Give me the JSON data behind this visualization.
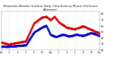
{
  "title": "Milwaukee Weather Outdoor Temp / Dew Point by Minute (24 Hours) (Alternate)",
  "title_fontsize": 2.8,
  "background_color": "#ffffff",
  "plot_bg_color": "#ffffff",
  "grid_color": "#aaaaaa",
  "temp_color": "#dd0000",
  "dew_color": "#0000cc",
  "ylim": [
    20,
    85
  ],
  "xlim": [
    0,
    1440
  ],
  "ylabel_fontsize": 2.5,
  "xlabel_fontsize": 2.2,
  "tick_color": "#000000",
  "line_width": 0.5,
  "marker": ".",
  "marker_size": 0.5,
  "yticks": [
    20,
    30,
    40,
    50,
    60,
    70,
    80
  ],
  "xtick_positions": [
    0,
    120,
    240,
    360,
    480,
    600,
    720,
    840,
    960,
    1080,
    1200,
    1320,
    1440
  ],
  "xtick_labels": [
    "12a",
    "2",
    "4",
    "6",
    "8",
    "10",
    "12p",
    "2",
    "4",
    "6",
    "8",
    "10",
    "12a"
  ]
}
